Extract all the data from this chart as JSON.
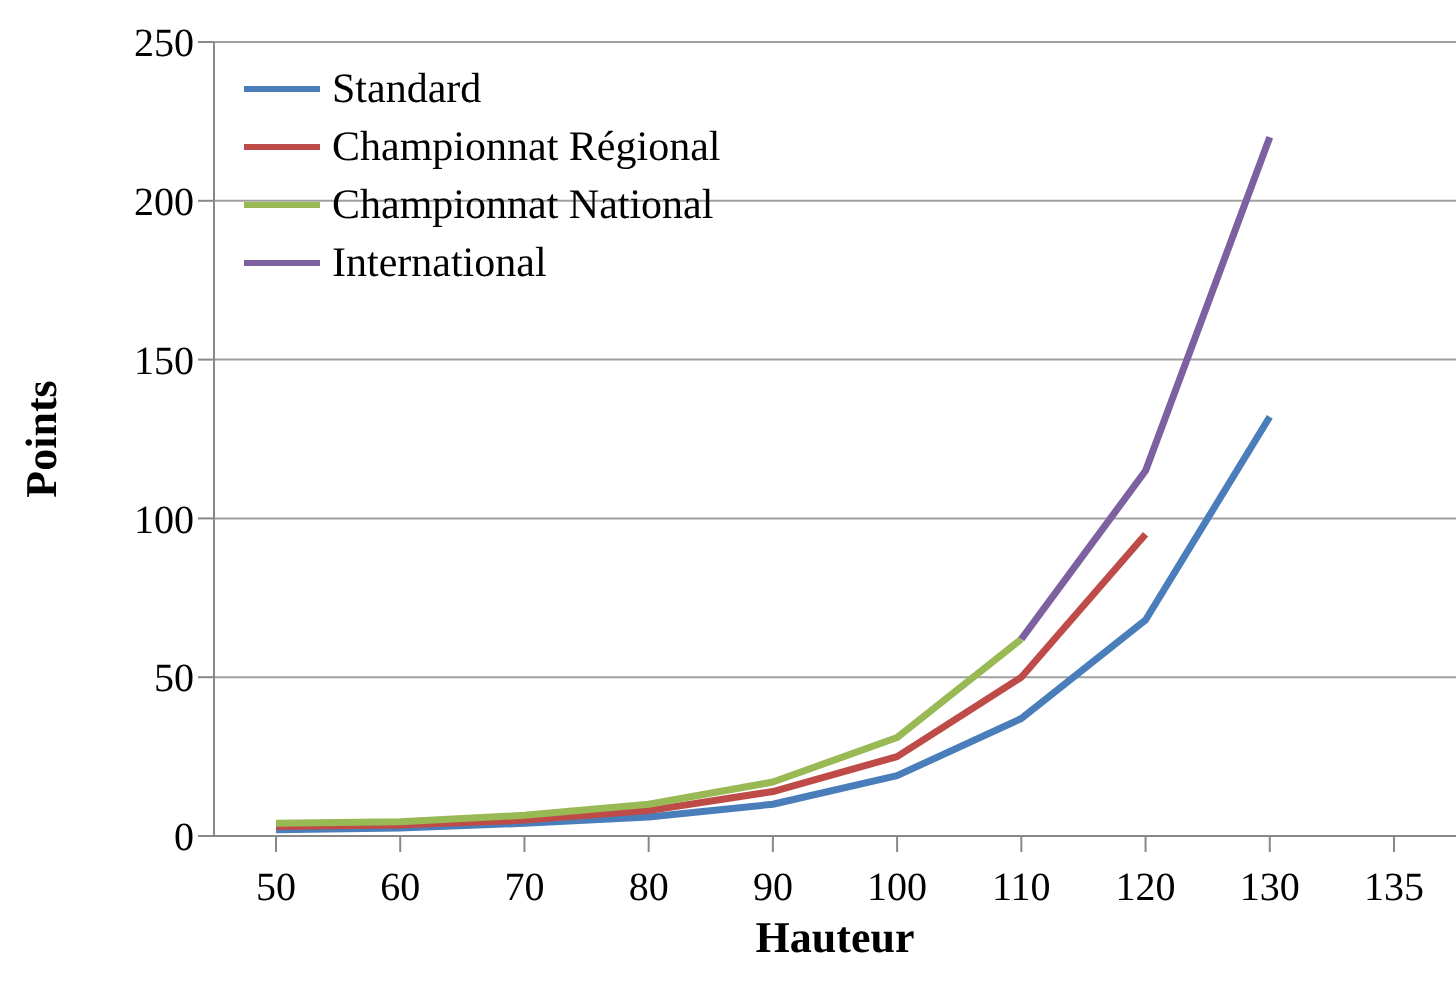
{
  "chart_data": {
    "type": "line",
    "xlabel": "Hauteur",
    "ylabel": "Points",
    "categories": [
      "50",
      "60",
      "70",
      "80",
      "90",
      "100",
      "110",
      "120",
      "130",
      "135"
    ],
    "series": [
      {
        "name": "Standard",
        "color": "#4a7ebb",
        "values": [
          2,
          2.5,
          4,
          6,
          10,
          19,
          37,
          68,
          132,
          null
        ]
      },
      {
        "name": "Championnat Régional",
        "color": "#be4b48",
        "values": [
          3,
          3.5,
          5,
          8,
          14,
          25,
          50,
          95,
          null,
          null
        ]
      },
      {
        "name": "Championnat National",
        "color": "#98b954",
        "values": [
          4,
          4.5,
          6.5,
          10,
          17,
          31,
          62,
          null,
          null,
          null
        ]
      },
      {
        "name": "International",
        "color": "#7d60a0",
        "values": [
          null,
          null,
          null,
          null,
          null,
          null,
          62,
          115,
          220,
          null
        ]
      }
    ],
    "ylim": [
      0,
      250
    ],
    "yticks": [
      0,
      50,
      100,
      150,
      200,
      250
    ],
    "grid": "y",
    "legend": "top left",
    "marker": "none",
    "line_style": "solid"
  }
}
